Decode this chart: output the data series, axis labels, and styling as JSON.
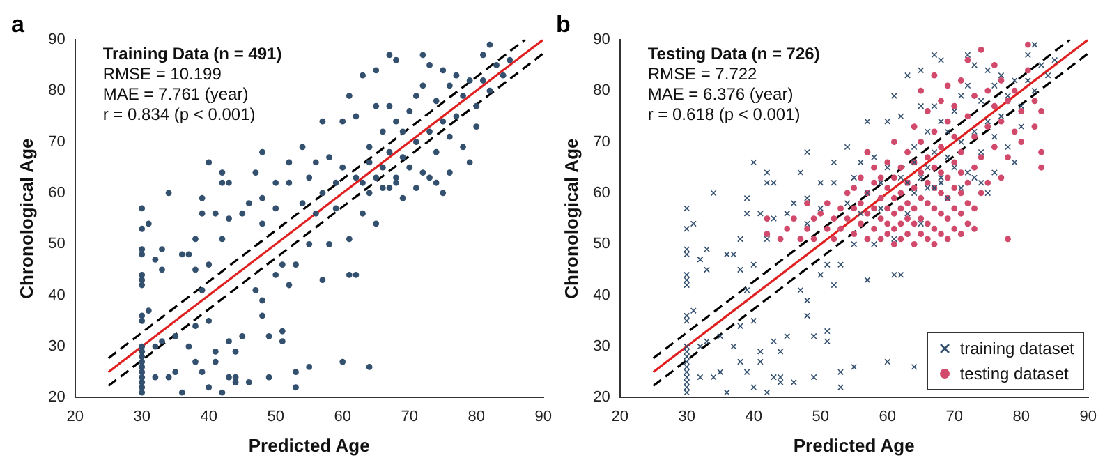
{
  "chart_data": [
    {
      "type": "scatter",
      "title": "a",
      "xlabel": "Predicted Age",
      "ylabel": "Chronological Age",
      "annotations": [
        "Training Data (n = 491)",
        "RMSE = 10.199",
        "MAE = 7.761 (year)",
        "r = 0.834 (p < 0.001)"
      ],
      "xlim": [
        20,
        90
      ],
      "ylim": [
        20,
        90
      ],
      "xticks": [
        20,
        30,
        40,
        50,
        60,
        70,
        80,
        90
      ],
      "yticks": [
        20,
        30,
        40,
        50,
        60,
        70,
        80,
        90
      ],
      "legend": false,
      "series": [
        {
          "color": "#34506f",
          "marker": "circle",
          "x": [
            30,
            30,
            30,
            30,
            30,
            30,
            30,
            30,
            30,
            30,
            30,
            30,
            30,
            30,
            30,
            30,
            30,
            30,
            30,
            31,
            31,
            32,
            32,
            32,
            33,
            33,
            33,
            34,
            34,
            35,
            35,
            36,
            36,
            37,
            37,
            38,
            38,
            38,
            38,
            39,
            39,
            39,
            39,
            40,
            40,
            40,
            40,
            41,
            41,
            41,
            42,
            42,
            42,
            42,
            43,
            43,
            43,
            44,
            44,
            45,
            45,
            46,
            46,
            47,
            47,
            48,
            48,
            48,
            48,
            48,
            49,
            49,
            50,
            50,
            50,
            51,
            51,
            51,
            52,
            52,
            52,
            53,
            53,
            53,
            54,
            54,
            55,
            55,
            55,
            56,
            56,
            57,
            57,
            57,
            58,
            58,
            59,
            59,
            60,
            60,
            60,
            61,
            61,
            61,
            62,
            62,
            62,
            63,
            63,
            63,
            64,
            64,
            64,
            65,
            65,
            65,
            65,
            66,
            66,
            66,
            67,
            67,
            67,
            67,
            68,
            68,
            68,
            68,
            69,
            69,
            69,
            70,
            70,
            71,
            71,
            71,
            72,
            72,
            72,
            73,
            73,
            73,
            74,
            74,
            74,
            75,
            75,
            75,
            76,
            76,
            76,
            77,
            77,
            78,
            78,
            79,
            79,
            80,
            80,
            81,
            81,
            82,
            82,
            83,
            84,
            85,
            64,
            43,
            44
          ],
          "values": [
            21,
            22,
            23,
            24,
            25,
            26,
            27,
            28,
            29,
            30,
            35,
            36,
            42,
            43,
            44,
            48,
            49,
            53,
            57,
            37,
            54,
            47,
            24,
            30,
            45,
            49,
            31,
            60,
            24,
            25,
            32,
            48,
            21,
            48,
            30,
            27,
            45,
            51,
            34,
            59,
            56,
            41,
            25,
            22,
            46,
            66,
            35,
            29,
            27,
            56,
            62,
            51,
            64,
            21,
            55,
            31,
            62,
            29,
            24,
            56,
            32,
            58,
            23,
            41,
            64,
            39,
            36,
            59,
            68,
            54,
            32,
            24,
            57,
            44,
            62,
            46,
            33,
            31,
            42,
            66,
            62,
            22,
            46,
            25,
            58,
            69,
            50,
            26,
            63,
            56,
            66,
            43,
            60,
            74,
            67,
            50,
            62,
            57,
            65,
            74,
            27,
            44,
            51,
            79,
            44,
            63,
            75,
            83,
            56,
            62,
            60,
            69,
            66,
            54,
            84,
            77,
            63,
            72,
            61,
            65,
            77,
            68,
            61,
            87,
            86,
            62,
            74,
            63,
            59,
            67,
            72,
            76,
            65,
            61,
            70,
            79,
            64,
            81,
            87,
            63,
            72,
            85,
            68,
            62,
            78,
            60,
            74,
            84,
            64,
            71,
            81,
            75,
            83,
            69,
            79,
            66,
            82,
            73,
            77,
            87,
            82,
            80,
            89,
            85,
            83,
            86,
            26,
            24,
            23
          ]
        },
        {
          "type": "line",
          "color": "#e02020",
          "marker": "none",
          "line_style": "solid",
          "x": [
            25,
            90
          ],
          "values": [
            25,
            90
          ]
        },
        {
          "type": "line",
          "color": "#000000",
          "marker": "none",
          "line_style": "dashed",
          "x": [
            25,
            87.3
          ],
          "values": [
            27.7,
            90
          ]
        },
        {
          "type": "line",
          "color": "#000000",
          "marker": "none",
          "line_style": "dashed",
          "x": [
            25,
            90
          ],
          "values": [
            22.3,
            87.3
          ]
        }
      ]
    },
    {
      "type": "scatter",
      "title": "b",
      "xlabel": "Predicted Age",
      "ylabel": "Chronological Age",
      "annotations": [
        "Testing Data (n = 726)",
        "RMSE = 7.722",
        "MAE = 6.376 (year)",
        "r = 0.618 (p < 0.001)"
      ],
      "xlim": [
        20,
        90
      ],
      "ylim": [
        20,
        90
      ],
      "xticks": [
        20,
        30,
        40,
        50,
        60,
        70,
        80,
        90
      ],
      "yticks": [
        20,
        30,
        40,
        50,
        60,
        70,
        80,
        90
      ],
      "legend": "bottom right",
      "series": [
        {
          "name": "training dataset",
          "color": "#34506f",
          "marker": "cross",
          "x": [
            30,
            30,
            30,
            30,
            30,
            30,
            30,
            30,
            30,
            30,
            30,
            30,
            30,
            30,
            30,
            30,
            30,
            30,
            30,
            31,
            31,
            32,
            32,
            32,
            33,
            33,
            33,
            34,
            34,
            35,
            35,
            36,
            36,
            37,
            37,
            38,
            38,
            38,
            38,
            39,
            39,
            39,
            39,
            40,
            40,
            40,
            40,
            41,
            41,
            41,
            42,
            42,
            42,
            42,
            43,
            43,
            43,
            44,
            44,
            45,
            45,
            46,
            46,
            47,
            47,
            48,
            48,
            48,
            48,
            48,
            49,
            49,
            50,
            50,
            50,
            51,
            51,
            51,
            52,
            52,
            52,
            53,
            53,
            53,
            54,
            54,
            55,
            55,
            55,
            56,
            56,
            57,
            57,
            57,
            58,
            58,
            59,
            59,
            60,
            60,
            60,
            61,
            61,
            61,
            62,
            62,
            62,
            63,
            63,
            63,
            64,
            64,
            64,
            65,
            65,
            65,
            65,
            66,
            66,
            66,
            67,
            67,
            67,
            67,
            68,
            68,
            68,
            68,
            69,
            69,
            69,
            70,
            70,
            71,
            71,
            71,
            72,
            72,
            72,
            73,
            73,
            73,
            74,
            74,
            74,
            75,
            75,
            75,
            76,
            76,
            76,
            77,
            77,
            78,
            78,
            79,
            79,
            80,
            80,
            81,
            81,
            82,
            82,
            83,
            84,
            85,
            64,
            43,
            44
          ],
          "values": [
            21,
            22,
            23,
            24,
            25,
            26,
            27,
            28,
            29,
            30,
            35,
            36,
            42,
            43,
            44,
            48,
            49,
            53,
            57,
            37,
            54,
            47,
            24,
            30,
            45,
            49,
            31,
            60,
            24,
            25,
            32,
            48,
            21,
            48,
            30,
            27,
            45,
            51,
            34,
            59,
            56,
            41,
            25,
            22,
            46,
            66,
            35,
            29,
            27,
            56,
            62,
            51,
            64,
            21,
            55,
            31,
            62,
            29,
            24,
            56,
            32,
            58,
            23,
            41,
            64,
            39,
            36,
            59,
            68,
            54,
            32,
            24,
            57,
            44,
            62,
            46,
            33,
            31,
            42,
            66,
            62,
            22,
            46,
            25,
            58,
            69,
            50,
            26,
            63,
            56,
            66,
            43,
            60,
            74,
            67,
            50,
            62,
            57,
            65,
            74,
            27,
            44,
            51,
            79,
            44,
            63,
            75,
            83,
            56,
            62,
            60,
            69,
            66,
            54,
            84,
            77,
            63,
            72,
            61,
            65,
            77,
            68,
            61,
            87,
            86,
            62,
            74,
            63,
            59,
            67,
            72,
            76,
            65,
            61,
            70,
            79,
            64,
            81,
            87,
            63,
            72,
            85,
            68,
            62,
            78,
            60,
            74,
            84,
            64,
            71,
            81,
            75,
            83,
            69,
            79,
            66,
            82,
            73,
            77,
            87,
            82,
            80,
            89,
            85,
            83,
            86,
            26,
            24,
            23
          ]
        },
        {
          "name": "testing dataset",
          "color": "#d1496b",
          "marker": "circle",
          "x": [
            42,
            42,
            44,
            45,
            46,
            47,
            48,
            48,
            49,
            49,
            50,
            51,
            51,
            52,
            52,
            53,
            53,
            54,
            54,
            55,
            55,
            55,
            56,
            56,
            56,
            57,
            57,
            57,
            57,
            58,
            58,
            58,
            58,
            59,
            59,
            59,
            59,
            60,
            60,
            60,
            60,
            60,
            61,
            61,
            61,
            61,
            61,
            61,
            62,
            62,
            62,
            62,
            62,
            63,
            63,
            63,
            63,
            63,
            64,
            64,
            64,
            64,
            64,
            64,
            65,
            65,
            65,
            65,
            65,
            65,
            66,
            66,
            66,
            66,
            66,
            66,
            67,
            67,
            67,
            67,
            67,
            67,
            67,
            68,
            68,
            68,
            68,
            68,
            68,
            69,
            69,
            69,
            69,
            69,
            69,
            70,
            70,
            70,
            70,
            70,
            70,
            71,
            71,
            71,
            71,
            71,
            71,
            72,
            72,
            72,
            72,
            72,
            73,
            73,
            73,
            73,
            73,
            74,
            74,
            74,
            75,
            75,
            75,
            76,
            76,
            76,
            77,
            77,
            77,
            78,
            78,
            78,
            79,
            79,
            80,
            80,
            81,
            81,
            82,
            83,
            83,
            83,
            82
          ],
          "values": [
            52,
            55,
            51,
            53,
            55,
            51,
            53,
            58,
            55,
            51,
            56,
            53,
            58,
            55,
            51,
            57,
            53,
            55,
            60,
            52,
            57,
            61,
            54,
            58,
            63,
            51,
            56,
            60,
            68,
            53,
            57,
            62,
            65,
            51,
            55,
            59,
            63,
            52,
            54,
            57,
            61,
            66,
            50,
            53,
            56,
            59,
            63,
            70,
            51,
            54,
            57,
            60,
            65,
            52,
            55,
            58,
            62,
            68,
            50,
            54,
            57,
            61,
            66,
            73,
            52,
            55,
            59,
            64,
            70,
            80,
            51,
            54,
            58,
            62,
            67,
            76,
            50,
            53,
            57,
            61,
            65,
            72,
            83,
            52,
            56,
            60,
            64,
            69,
            78,
            51,
            55,
            59,
            63,
            74,
            81,
            53,
            57,
            61,
            66,
            71,
            77,
            52,
            56,
            60,
            64,
            68,
            82,
            54,
            58,
            62,
            75,
            86,
            53,
            57,
            65,
            71,
            79,
            60,
            67,
            88,
            62,
            73,
            80,
            69,
            77,
            85,
            63,
            74,
            82,
            51,
            67,
            78,
            72,
            80,
            70,
            76,
            84,
            89,
            78,
            65,
            68,
            76,
            73
          ]
        },
        {
          "type": "line",
          "color": "#e02020",
          "marker": "none",
          "line_style": "solid",
          "x": [
            25,
            90
          ],
          "values": [
            25,
            90
          ]
        },
        {
          "type": "line",
          "color": "#000000",
          "marker": "none",
          "line_style": "dashed",
          "x": [
            25,
            87.3
          ],
          "values": [
            27.7,
            90
          ]
        },
        {
          "type": "line",
          "color": "#000000",
          "marker": "none",
          "line_style": "dashed",
          "x": [
            25,
            90
          ],
          "values": [
            22.3,
            87.3
          ]
        }
      ]
    }
  ]
}
